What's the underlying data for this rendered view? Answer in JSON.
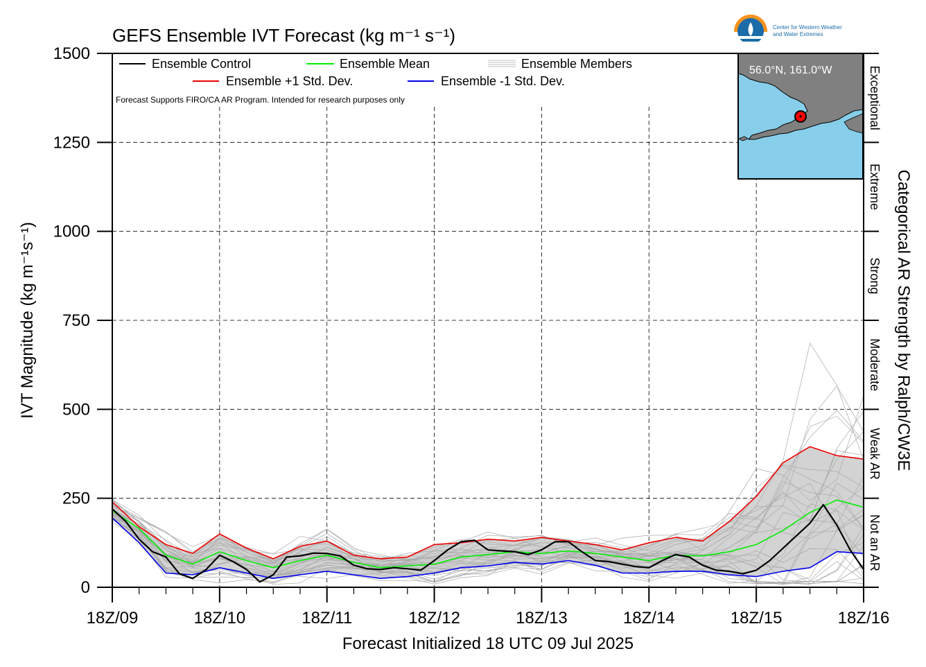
{
  "chart_data": {
    "type": "line",
    "title": "GEFS Ensemble IVT Forecast (kg m⁻¹ s⁻¹)",
    "ylabel": "IVT Magnitude (kg m⁻¹s⁻¹)",
    "ylabel_right": "Categorical AR Strength by Ralph/CW3E",
    "xlabel": "Forecast Initialized 18 UTC 09 Jul 2025",
    "ylim": [
      0,
      1500
    ],
    "yticks": [
      "0",
      "250",
      "500",
      "750",
      "1000",
      "1250",
      "1500"
    ],
    "xticks": [
      "18Z/09",
      "18Z/10",
      "18Z/11",
      "18Z/12",
      "18Z/13",
      "18Z/14",
      "18Z/15",
      "18Z/16"
    ],
    "x_hours": [
      0,
      6,
      12,
      18,
      24,
      30,
      36,
      42,
      48,
      54,
      60,
      66,
      72,
      78,
      84,
      90,
      96,
      102,
      108,
      114,
      120,
      126,
      132,
      138,
      144,
      150,
      156,
      162,
      168
    ],
    "grid": true,
    "note": "Forecast Supports FIRO/CA AR Program. Intended for research purposes only",
    "categories_ar": [
      {
        "label": "Not an AR",
        "from": 0,
        "to": 250
      },
      {
        "label": "Weak AR",
        "from": 250,
        "to": 500
      },
      {
        "label": "Moderate",
        "from": 500,
        "to": 750
      },
      {
        "label": "Strong",
        "from": 750,
        "to": 1000
      },
      {
        "label": "Extreme",
        "from": 1000,
        "to": 1250
      },
      {
        "label": "Exceptional",
        "from": 1250,
        "to": 1500
      }
    ],
    "legend": {
      "placement": "top-left",
      "control": "Ensemble Control",
      "mean": "Ensemble Mean",
      "members": "Ensemble Members",
      "plus": "Ensemble +1 Std. Dev.",
      "minus": "Ensemble -1 Std. Dev."
    },
    "series": [
      {
        "key": "control",
        "color": "#000000",
        "x": [
          0,
          3,
          6,
          9,
          12,
          15,
          18,
          21,
          24,
          27,
          30,
          33,
          36,
          39,
          42,
          45,
          48,
          51,
          54,
          57,
          60,
          63,
          66,
          69,
          72,
          75,
          78,
          81,
          84,
          87,
          90,
          93,
          96,
          99,
          102,
          105,
          108,
          111,
          114,
          117,
          120,
          123,
          126,
          129,
          132,
          135,
          138,
          141,
          144,
          147,
          150,
          153,
          156,
          159,
          162,
          165,
          168
        ],
        "values": [
          220,
          185,
          135,
          100,
          85,
          38,
          25,
          50,
          90,
          72,
          50,
          15,
          35,
          85,
          88,
          96,
          95,
          88,
          62,
          52,
          50,
          55,
          52,
          48,
          75,
          105,
          128,
          132,
          105,
          102,
          100,
          92,
          105,
          128,
          128,
          100,
          75,
          72,
          65,
          58,
          55,
          75,
          92,
          85,
          62,
          48,
          45,
          38,
          48,
          75,
          110,
          145,
          180,
          232,
          175,
          105,
          50
        ]
      },
      {
        "key": "mean",
        "color": "#00ee00",
        "x": [
          0,
          6,
          12,
          18,
          24,
          30,
          36,
          42,
          48,
          54,
          60,
          66,
          72,
          78,
          84,
          90,
          96,
          102,
          108,
          114,
          120,
          126,
          132,
          138,
          144,
          150,
          156,
          162,
          168
        ],
        "values": [
          215,
          165,
          90,
          65,
          100,
          75,
          55,
          75,
          90,
          70,
          55,
          60,
          65,
          85,
          92,
          100,
          95,
          102,
          95,
          85,
          75,
          90,
          88,
          100,
          120,
          160,
          210,
          245,
          225
        ]
      },
      {
        "key": "plus",
        "color": "#ee0000",
        "x": [
          0,
          6,
          12,
          18,
          24,
          30,
          36,
          42,
          48,
          54,
          60,
          66,
          72,
          78,
          84,
          90,
          96,
          102,
          108,
          114,
          120,
          126,
          132,
          138,
          144,
          150,
          156,
          162,
          168
        ],
        "values": [
          240,
          170,
          120,
          95,
          150,
          110,
          80,
          115,
          130,
          90,
          80,
          85,
          120,
          125,
          135,
          130,
          140,
          130,
          120,
          105,
          125,
          140,
          130,
          185,
          255,
          350,
          395,
          370,
          360
        ]
      },
      {
        "key": "minus",
        "color": "#0000ee",
        "x": [
          0,
          6,
          12,
          18,
          24,
          30,
          36,
          42,
          48,
          54,
          60,
          66,
          72,
          78,
          84,
          90,
          96,
          102,
          108,
          114,
          120,
          126,
          132,
          138,
          144,
          150,
          156,
          162,
          168
        ],
        "values": [
          195,
          125,
          40,
          35,
          55,
          40,
          25,
          35,
          45,
          35,
          25,
          30,
          40,
          55,
          60,
          70,
          65,
          75,
          62,
          40,
          40,
          45,
          45,
          35,
          30,
          45,
          55,
          100,
          95
        ]
      }
    ]
  },
  "inset": {
    "coords": "56.0°N, 161.0°W",
    "ocean_color": "#87ceeb",
    "land_color": "#808080",
    "marker": "red-dot"
  },
  "logo": {
    "line1": "Center for Western Weather",
    "line2": "and Water Extremes"
  }
}
